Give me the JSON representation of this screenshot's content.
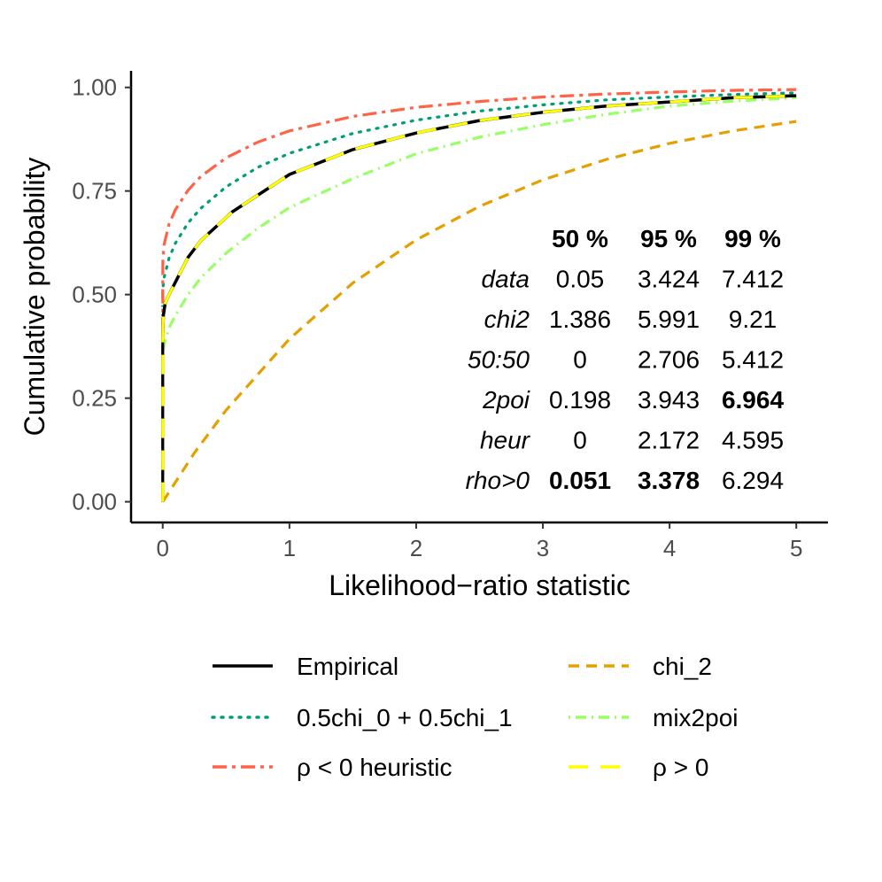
{
  "chart_data": {
    "type": "line",
    "xlabel": "Likelihood−ratio statistic",
    "ylabel": "Cumulative probability",
    "xlim": [
      -0.25,
      5.25
    ],
    "ylim": [
      -0.05,
      1.04
    ],
    "x_ticks": [
      0,
      1,
      2,
      3,
      4,
      5
    ],
    "x_tick_labels": [
      "0",
      "1",
      "2",
      "3",
      "4",
      "5"
    ],
    "y_ticks": [
      0,
      0.25,
      0.5,
      0.75,
      1
    ],
    "y_tick_labels": [
      "0.00",
      "0.25",
      "0.50",
      "0.75",
      "1.00"
    ],
    "grid": false,
    "legend_position": "bottom",
    "series": [
      {
        "name": "Empirical",
        "color": "#000000",
        "dash": "solid",
        "x": [
          0,
          0.005,
          0.02,
          0.05,
          0.1,
          0.2,
          0.3,
          0.55,
          1,
          1.5,
          2,
          2.5,
          3,
          3.5,
          4,
          4.5,
          5
        ],
        "y": [
          0.4,
          0.45,
          0.48,
          0.5,
          0.53,
          0.59,
          0.63,
          0.7,
          0.79,
          0.85,
          0.89,
          0.92,
          0.94,
          0.955,
          0.965,
          0.975,
          0.98
        ]
      },
      {
        "name": "chi_2",
        "color": "#E69F00",
        "dash": "longdash",
        "x": [
          0,
          0.25,
          0.5,
          1,
          1.5,
          2,
          2.5,
          3,
          3.5,
          4,
          4.5,
          5
        ],
        "y": [
          0,
          0.118,
          0.221,
          0.393,
          0.528,
          0.632,
          0.713,
          0.777,
          0.826,
          0.865,
          0.895,
          0.918
        ]
      },
      {
        "name": "0.5chi_0 + 0.5chi_1",
        "color": "#009E73",
        "dash": "dotted",
        "x": [
          0,
          0.001,
          0.01,
          0.05,
          0.1,
          0.2,
          0.3,
          0.5,
          0.75,
          1,
          1.5,
          2,
          2.5,
          3,
          3.5,
          4,
          4.5,
          5
        ],
        "y": [
          0.5,
          0.513,
          0.54,
          0.588,
          0.624,
          0.673,
          0.708,
          0.76,
          0.807,
          0.841,
          0.889,
          0.921,
          0.943,
          0.958,
          0.97,
          0.977,
          0.983,
          0.987
        ]
      },
      {
        "name": "mix2poi",
        "color": "#99FF66",
        "dash": "dotdash",
        "x": [
          0,
          0.01,
          0.05,
          0.1,
          0.2,
          0.3,
          0.5,
          0.75,
          1,
          1.5,
          2,
          2.5,
          3,
          3.5,
          4,
          4.5,
          5
        ],
        "y": [
          0.35,
          0.38,
          0.42,
          0.45,
          0.5,
          0.54,
          0.6,
          0.66,
          0.71,
          0.78,
          0.84,
          0.88,
          0.91,
          0.935,
          0.955,
          0.967,
          0.975
        ]
      },
      {
        "name": "ρ < 0 heuristic",
        "color": "#FF6347",
        "dash": "twodash",
        "x": [
          0,
          0.001,
          0.01,
          0.05,
          0.1,
          0.2,
          0.3,
          0.5,
          0.75,
          1,
          1.5,
          2,
          2.5,
          3,
          3.5,
          4,
          4.5,
          5
        ],
        "y": [
          0.55,
          0.58,
          0.62,
          0.67,
          0.705,
          0.752,
          0.785,
          0.83,
          0.868,
          0.895,
          0.93,
          0.952,
          0.966,
          0.977,
          0.984,
          0.989,
          0.993,
          0.995
        ]
      },
      {
        "name": "ρ > 0",
        "color": "#FFFF00",
        "dash": "dashed",
        "x": [
          0,
          0.005,
          0.02,
          0.05,
          0.1,
          0.2,
          0.3,
          0.55,
          1,
          1.5,
          2,
          2.5,
          3,
          3.5,
          4,
          4.5,
          5
        ],
        "y": [
          0.4,
          0.45,
          0.48,
          0.5,
          0.53,
          0.59,
          0.63,
          0.7,
          0.79,
          0.85,
          0.89,
          0.92,
          0.94,
          0.955,
          0.965,
          0.975,
          0.98
        ]
      }
    ],
    "annotation_table": {
      "headers": [
        "50 %",
        "95 %",
        "99 %"
      ],
      "rows": [
        {
          "label": "data",
          "values": [
            "0.05",
            "3.424",
            "7.412"
          ],
          "bold": [
            false,
            false,
            false
          ]
        },
        {
          "label": "chi2",
          "values": [
            "1.386",
            "5.991",
            "9.21"
          ],
          "bold": [
            false,
            false,
            false
          ]
        },
        {
          "label": "50:50",
          "values": [
            "0",
            "2.706",
            "5.412"
          ],
          "bold": [
            false,
            false,
            false
          ]
        },
        {
          "label": "2poi",
          "values": [
            "0.198",
            "3.943",
            "6.964"
          ],
          "bold": [
            false,
            false,
            true
          ]
        },
        {
          "label": "heur",
          "values": [
            "0",
            "2.172",
            "4.595"
          ],
          "bold": [
            false,
            false,
            false
          ]
        },
        {
          "label": "rho>0",
          "values": [
            "0.051",
            "3.378",
            "6.294"
          ],
          "bold": [
            true,
            true,
            false
          ]
        }
      ]
    },
    "legend": [
      {
        "label": "Empirical",
        "color": "#000000",
        "dash": "solid"
      },
      {
        "label": "chi_2",
        "color": "#E69F00",
        "dash": "longdash"
      },
      {
        "label": "0.5chi_0 + 0.5chi_1",
        "color": "#009E73",
        "dash": "dotted"
      },
      {
        "label": "mix2poi",
        "color": "#99FF66",
        "dash": "dotdash"
      },
      {
        "label": "ρ < 0 heuristic",
        "color": "#FF6347",
        "dash": "twodash"
      },
      {
        "label": "ρ > 0",
        "color": "#FFFF00",
        "dash": "dashed"
      }
    ]
  }
}
